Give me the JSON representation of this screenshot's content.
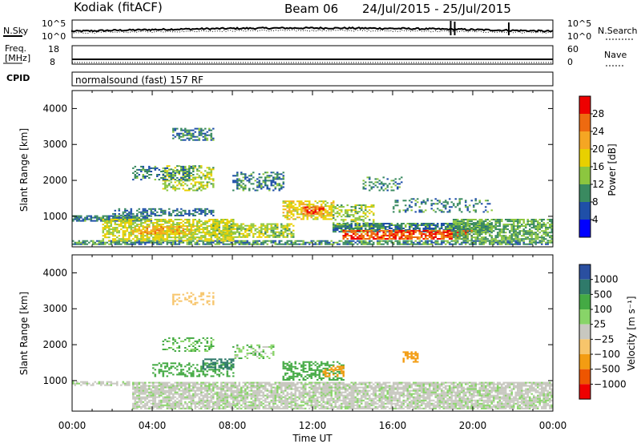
{
  "header": {
    "station": "Kodiak (fitACF)",
    "beam": "Beam 06",
    "date_range": "24/Jul/2015 - 25/Jul/2015"
  },
  "top_panel": {
    "left_label": "N.Sky",
    "right_label": "N.Search",
    "left_ticks": [
      "10^5",
      "10^0"
    ],
    "right_ticks": [
      "10^5",
      "10^0"
    ]
  },
  "freq_panel": {
    "left_label_1": "Freq.",
    "left_label_2": "[MHz]",
    "left_ticks": [
      "18",
      "8"
    ],
    "right_label": "Nave",
    "right_ticks": [
      "60",
      "0"
    ]
  },
  "cpid": {
    "label": "CPID",
    "mode": "normalsound (fast) 157 RF"
  },
  "colors": {
    "power": [
      "#0000ff",
      "#1f4fa8",
      "#3a8a60",
      "#8cc63f",
      "#e8d000",
      "#f5a623",
      "#ee6a10",
      "#ee0000"
    ],
    "velocity_neg": [
      "#ee0000",
      "#ee5500",
      "#f39c12",
      "#f7c56b"
    ],
    "velocity_zero": "#c8c8c0",
    "velocity_pos": [
      "#88d468",
      "#44aa44",
      "#2f7a6a",
      "#2a4fa0"
    ]
  },
  "chart_data": [
    {
      "type": "heatmap",
      "name": "power",
      "ylabel": "Slant Range [km]",
      "xlabel": "",
      "x_ticks": [
        "00:00",
        "04:00",
        "08:00",
        "12:00",
        "16:00",
        "20:00",
        "00:00"
      ],
      "y_ticks": [
        1000,
        2000,
        3000,
        4000
      ],
      "ylim": [
        150,
        4500
      ],
      "xlim_hours": [
        0,
        24
      ],
      "colorbar": {
        "label": "Power [dB]",
        "ticks": [
          "4",
          "8",
          "12",
          "16",
          "20",
          "24",
          "28"
        ],
        "range": [
          0,
          32
        ]
      },
      "regions": [
        {
          "t0": 0.0,
          "t1": 24.0,
          "r0": 200,
          "r1": 300,
          "v": 10,
          "density": 0.75
        },
        {
          "t0": 0.0,
          "t1": 4.0,
          "r0": 850,
          "r1": 1000,
          "v": 9,
          "density": 0.8
        },
        {
          "t0": 1.5,
          "t1": 8.0,
          "r0": 300,
          "r1": 900,
          "v": 16,
          "density": 0.7
        },
        {
          "t0": 3.0,
          "t1": 6.0,
          "r0": 500,
          "r1": 700,
          "v": 22,
          "density": 0.6
        },
        {
          "t0": 2.0,
          "t1": 7.0,
          "r0": 1000,
          "r1": 1200,
          "v": 8,
          "density": 0.5
        },
        {
          "t0": 4.5,
          "t1": 7.0,
          "r0": 1700,
          "r1": 2400,
          "v": 15,
          "density": 0.5
        },
        {
          "t0": 3.0,
          "t1": 6.0,
          "r0": 2000,
          "r1": 2400,
          "v": 9,
          "density": 0.4
        },
        {
          "t0": 5.0,
          "t1": 7.0,
          "r0": 3100,
          "r1": 3450,
          "v": 9,
          "density": 0.5
        },
        {
          "t0": 8.0,
          "t1": 10.5,
          "r0": 1700,
          "r1": 2200,
          "v": 9,
          "density": 0.45
        },
        {
          "t0": 7.0,
          "t1": 11.0,
          "r0": 400,
          "r1": 800,
          "v": 15,
          "density": 0.65
        },
        {
          "t0": 10.5,
          "t1": 13.0,
          "r0": 900,
          "r1": 1400,
          "v": 19,
          "density": 0.6
        },
        {
          "t0": 11.5,
          "t1": 12.5,
          "r0": 1050,
          "r1": 1250,
          "v": 26,
          "density": 0.7
        },
        {
          "t0": 13.0,
          "t1": 21.0,
          "r0": 550,
          "r1": 800,
          "v": 9,
          "density": 0.8
        },
        {
          "t0": 13.5,
          "t1": 20.0,
          "r0": 350,
          "r1": 600,
          "v": 27,
          "density": 0.75
        },
        {
          "t0": 13.0,
          "t1": 15.0,
          "r0": 700,
          "r1": 1300,
          "v": 14,
          "density": 0.5
        },
        {
          "t0": 16.0,
          "t1": 21.0,
          "r0": 1100,
          "r1": 1500,
          "v": 9,
          "density": 0.3
        },
        {
          "t0": 19.0,
          "t1": 24.0,
          "r0": 300,
          "r1": 900,
          "v": 12,
          "density": 0.7
        },
        {
          "t0": 14.5,
          "t1": 16.5,
          "r0": 1700,
          "r1": 2100,
          "v": 10,
          "density": 0.3
        }
      ]
    },
    {
      "type": "heatmap",
      "name": "velocity",
      "ylabel": "Slant Range [km]",
      "xlabel": "Time UT",
      "x_ticks": [
        "00:00",
        "04:00",
        "08:00",
        "12:00",
        "16:00",
        "20:00",
        "00:00"
      ],
      "y_ticks": [
        1000,
        2000,
        3000,
        4000
      ],
      "ylim": [
        150,
        4500
      ],
      "xlim_hours": [
        0,
        24
      ],
      "colorbar": {
        "label": "Velocity [m s⁻¹]",
        "ticks": [
          "1000",
          "500",
          "100",
          "25",
          "−25",
          "−100",
          "−500",
          "−1000"
        ]
      },
      "regions": [
        {
          "t0": 3.0,
          "t1": 24.0,
          "r0": 200,
          "r1": 950,
          "v": 0,
          "density": 0.8
        },
        {
          "t0": 0.0,
          "t1": 3.0,
          "r0": 850,
          "r1": 950,
          "v": 0,
          "density": 0.6
        },
        {
          "t0": 4.0,
          "t1": 8.0,
          "r0": 1100,
          "r1": 1500,
          "v": 50,
          "density": 0.45
        },
        {
          "t0": 6.5,
          "t1": 8.0,
          "r0": 1300,
          "r1": 1600,
          "v": 300,
          "density": 0.5
        },
        {
          "t0": 4.5,
          "t1": 7.0,
          "r0": 1800,
          "r1": 2200,
          "v": 30,
          "density": 0.35
        },
        {
          "t0": 10.5,
          "t1": 13.5,
          "r0": 1000,
          "r1": 1500,
          "v": 60,
          "density": 0.5
        },
        {
          "t0": 12.5,
          "t1": 13.5,
          "r0": 1100,
          "r1": 1400,
          "v": -200,
          "density": 0.5
        },
        {
          "t0": 16.5,
          "t1": 17.3,
          "r0": 1500,
          "r1": 1800,
          "v": -200,
          "density": 0.6
        },
        {
          "t0": 5.0,
          "t1": 7.0,
          "r0": 3100,
          "r1": 3450,
          "v": -60,
          "density": 0.35
        },
        {
          "t0": 8.0,
          "t1": 10.0,
          "r0": 1600,
          "r1": 2000,
          "v": 15,
          "density": 0.35
        }
      ]
    }
  ]
}
